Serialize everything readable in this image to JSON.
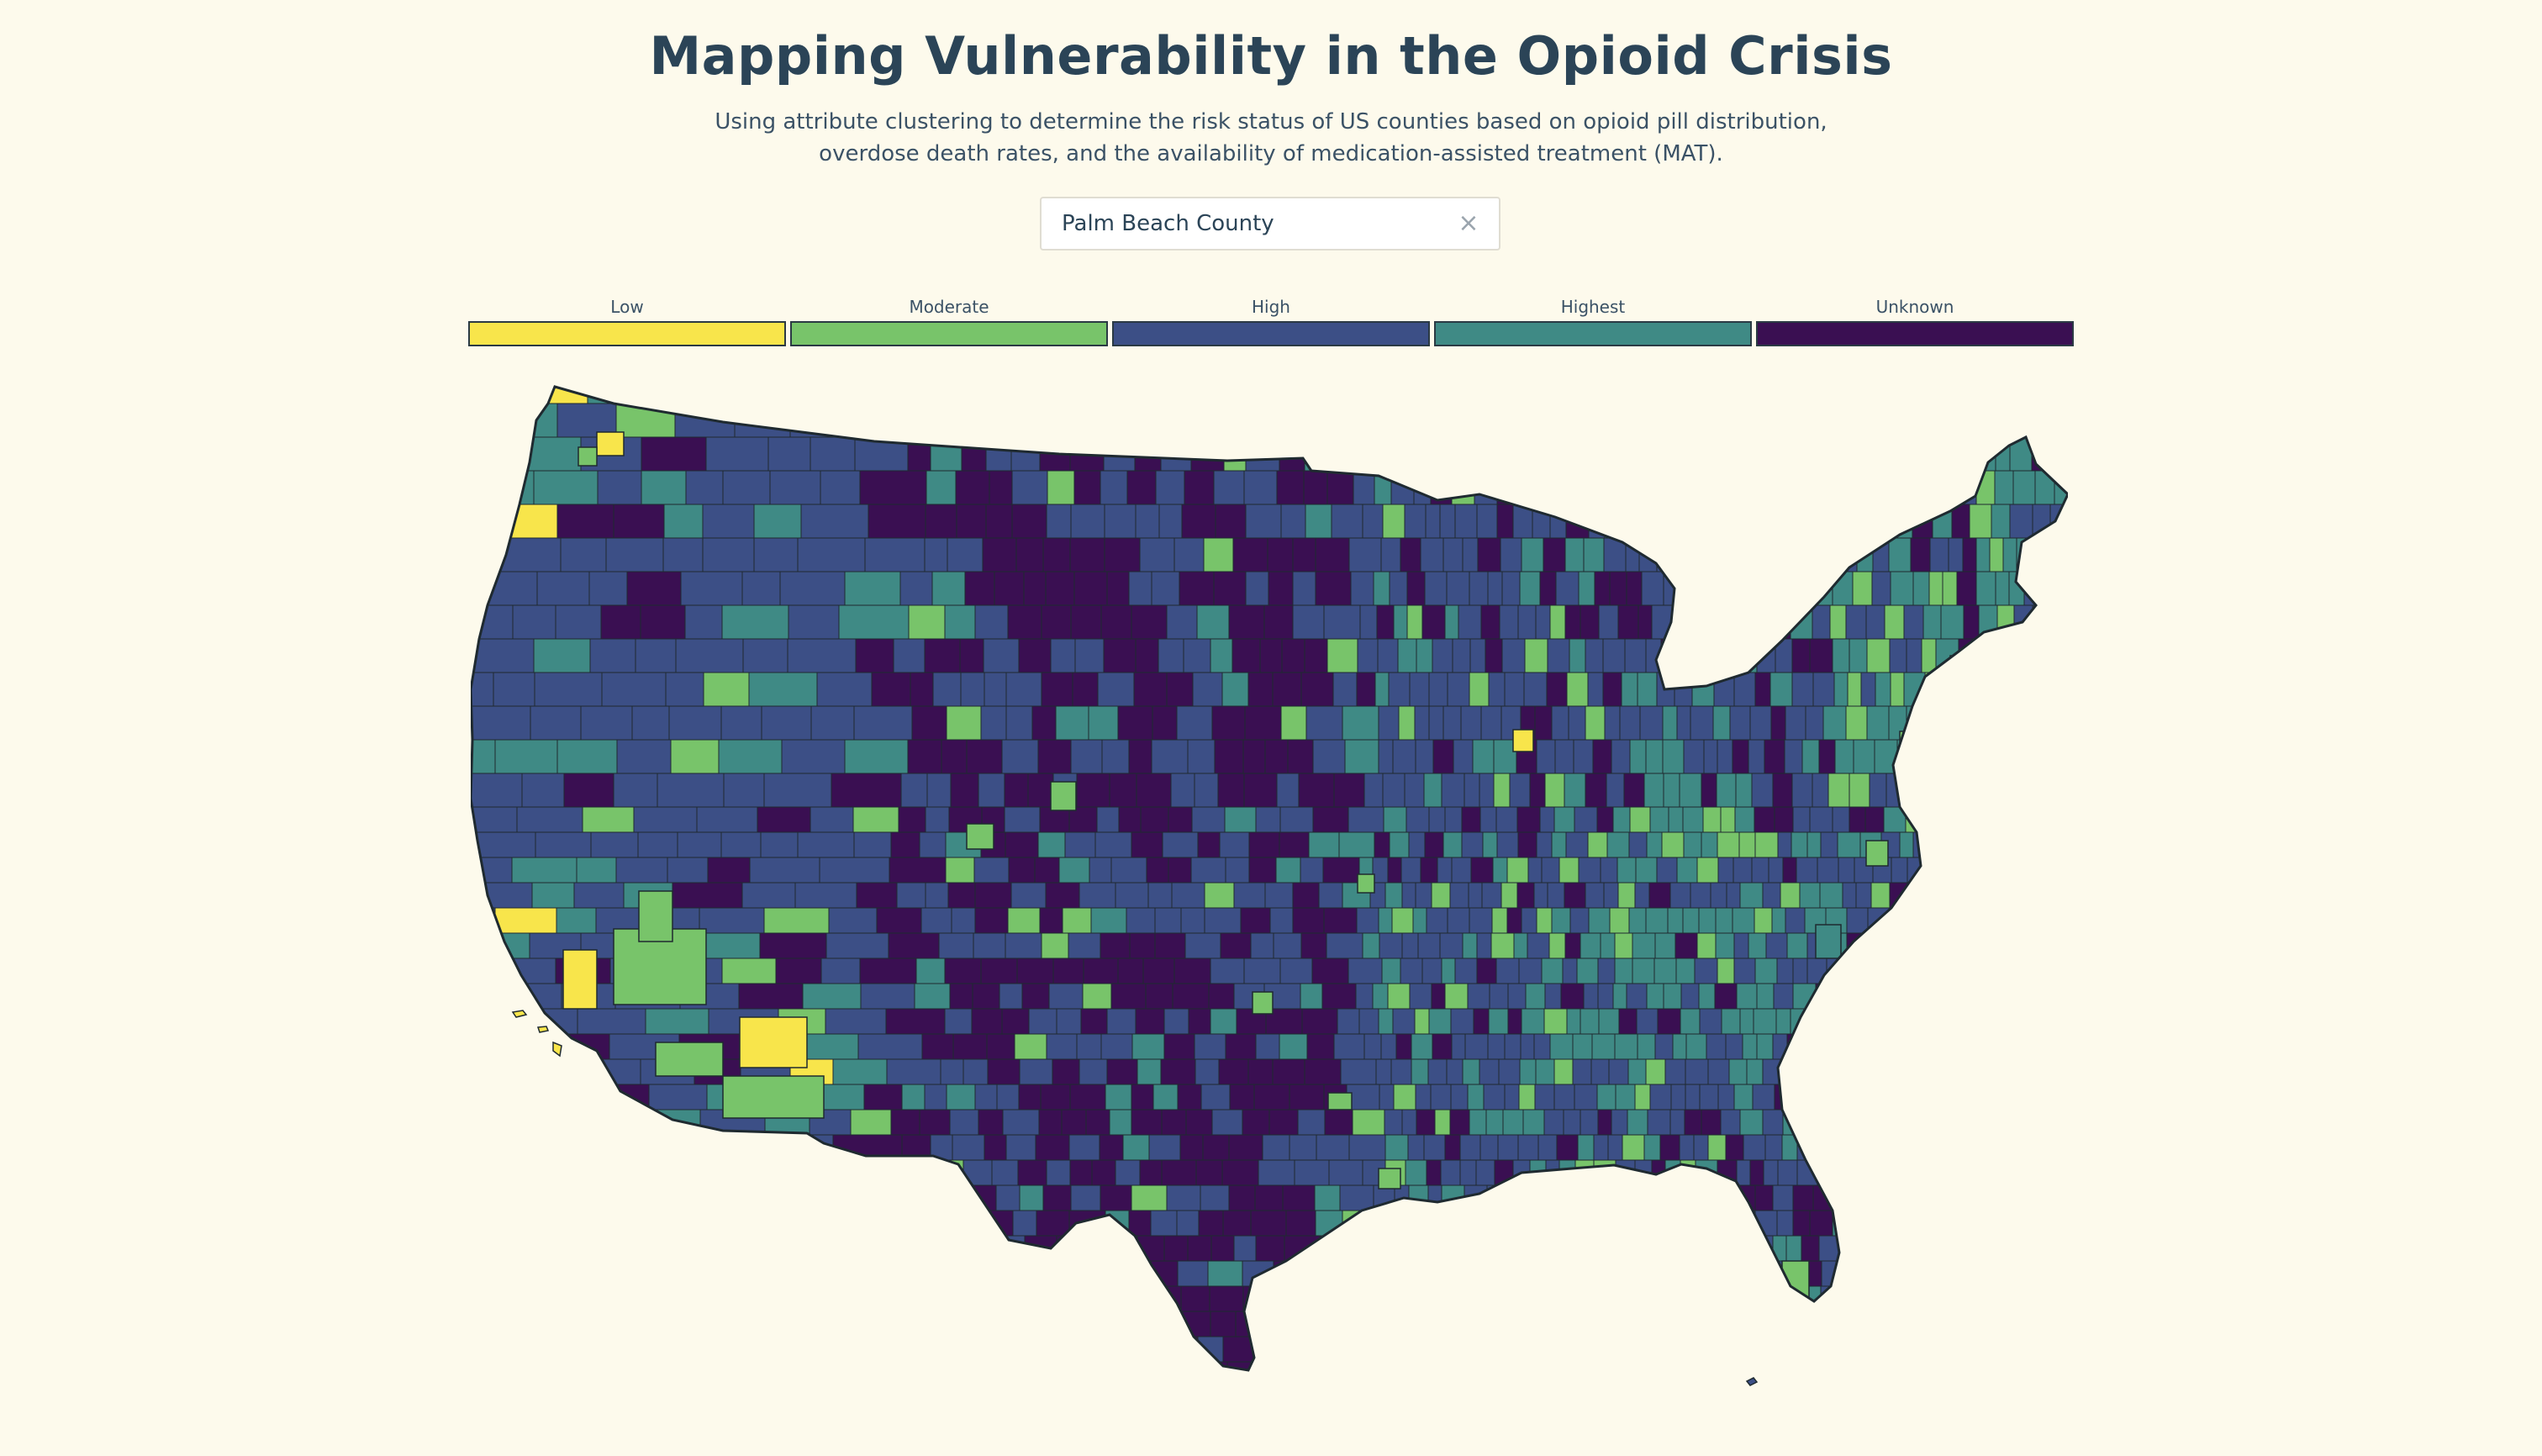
{
  "header": {
    "title": "Mapping Vulnerability in the Opioid Crisis",
    "subtitle": "Using attribute clustering to determine the risk status of US counties based on opioid pill distribution, overdose death rates, and the availability of medication-assisted treatment (MAT)."
  },
  "search": {
    "value": "Palm Beach County",
    "clear_glyph": "×"
  },
  "legend": {
    "items": [
      {
        "label": "Low",
        "color": "#f8e54b"
      },
      {
        "label": "Moderate",
        "color": "#78c46a"
      },
      {
        "label": "High",
        "color": "#3c4f86"
      },
      {
        "label": "Highest",
        "color": "#3f8a85"
      },
      {
        "label": "Unknown",
        "color": "#3a0f52"
      }
    ]
  },
  "map": {
    "region": "contiguous-us-counties",
    "border_color": "#1f2a30"
  }
}
